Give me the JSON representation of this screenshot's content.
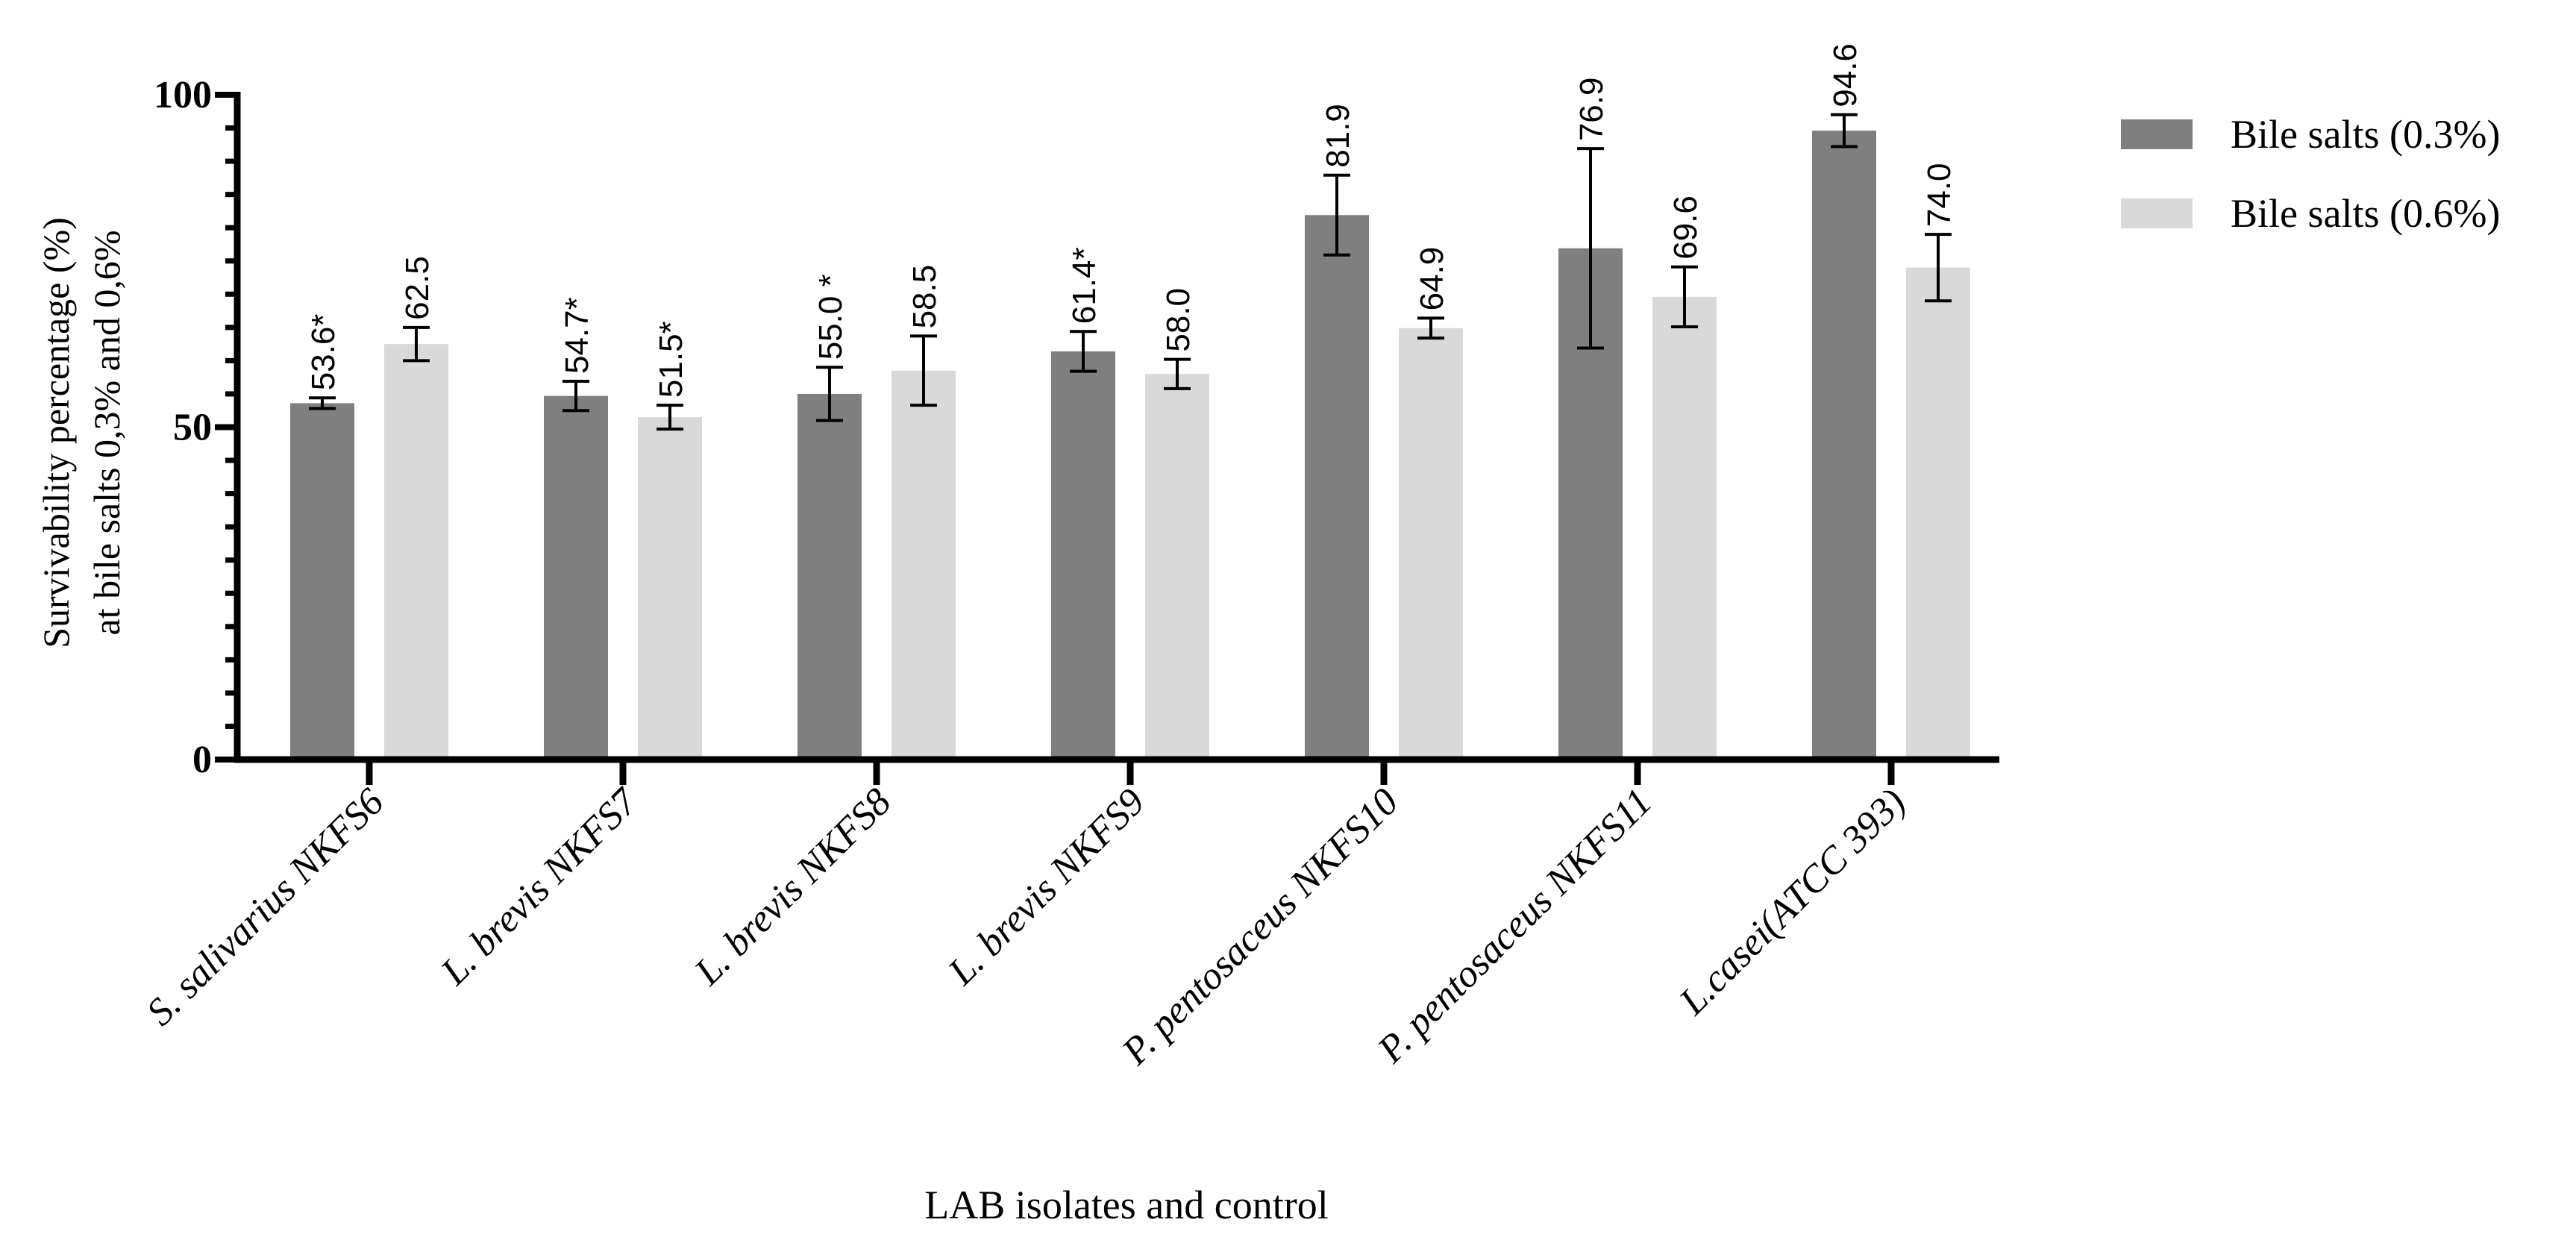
{
  "chart_data": {
    "type": "bar",
    "title": "",
    "xlabel": "LAB  isolates and control",
    "ylabel_line1": "Survivability percentage (%)",
    "ylabel_line2": "at bile salts 0,3% and 0,6%",
    "ylim": [
      0,
      100
    ],
    "yticks": [
      0,
      50,
      100
    ],
    "y_minor_step": 5,
    "legend_position": "top-right",
    "categories": [
      "S. salivarius NKFS6",
      "L. brevis NKFS7",
      "L. brevis NKFS8",
      "L. brevis NKFS9",
      "P. pentosaceus NKFS10",
      "P. pentosaceus NKFS11",
      "L.casei(ATCC 393)"
    ],
    "series": [
      {
        "name": "Bile salts (0.3%)",
        "color": "#7f7f7f",
        "values": [
          53.6,
          54.7,
          55.0,
          61.4,
          81.9,
          76.9,
          94.6
        ],
        "errors": [
          0.8,
          2.2,
          4.0,
          3.0,
          6.0,
          15.0,
          2.4
        ],
        "labels": [
          "53.6*",
          "54.7*",
          "55.0 *",
          "61.4*",
          "81.9",
          "76.9",
          "94.6"
        ]
      },
      {
        "name": "Bile salts (0.6%)",
        "color": "#d9d9d9",
        "values": [
          62.5,
          51.5,
          58.5,
          58.0,
          64.9,
          69.6,
          74.0
        ],
        "errors": [
          2.5,
          1.8,
          5.2,
          2.2,
          1.5,
          4.5,
          5.0
        ],
        "labels": [
          "62.5",
          "51.5*",
          "58.5",
          "58.0",
          "64.9",
          "69.6",
          "74.0"
        ]
      }
    ]
  }
}
